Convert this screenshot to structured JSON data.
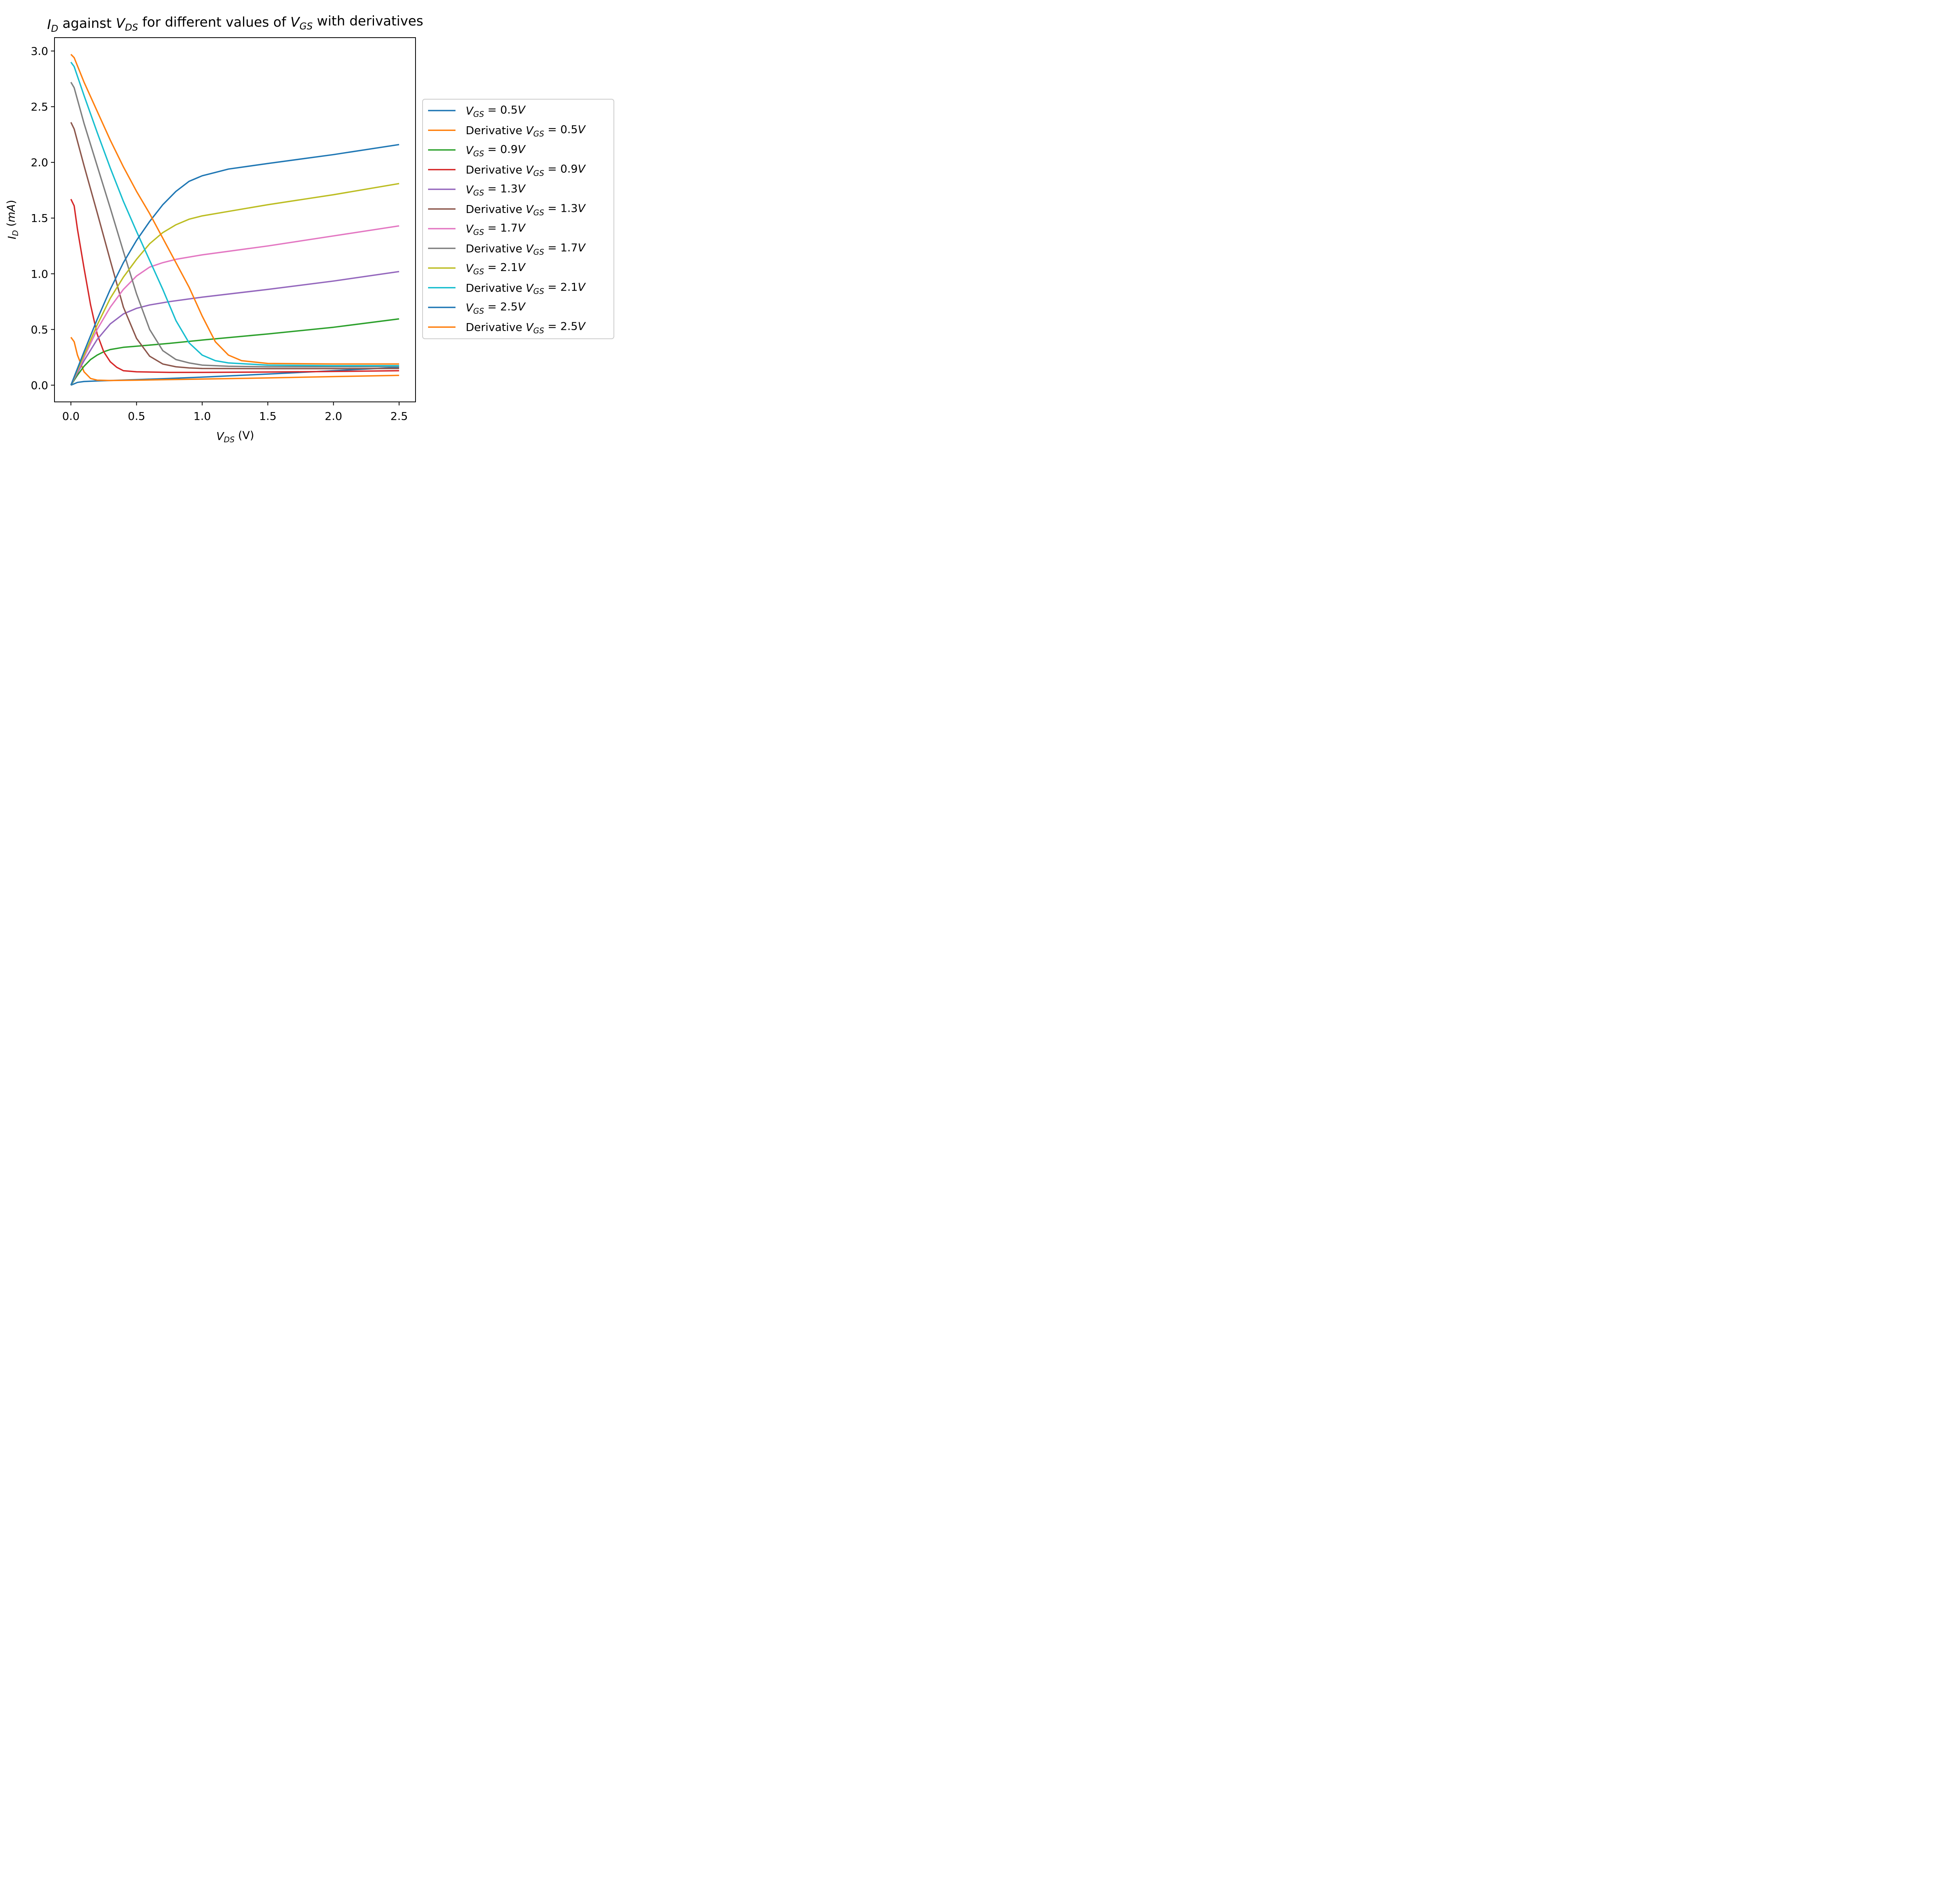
{
  "chart_data": {
    "type": "line",
    "title_parts": [
      {
        "text": "I",
        "italic": true
      },
      {
        "text": "D",
        "italic": true,
        "sub": true
      },
      {
        "text": " against "
      },
      {
        "text": "V",
        "italic": true
      },
      {
        "text": "DS",
        "italic": true,
        "sub": true
      },
      {
        "text": " for different values of "
      },
      {
        "text": "V",
        "italic": true
      },
      {
        "text": "GS",
        "italic": true,
        "sub": true
      },
      {
        "text": " with derivatives"
      }
    ],
    "xlabel_parts": [
      {
        "text": "V",
        "italic": true
      },
      {
        "text": "DS",
        "italic": true,
        "sub": true
      },
      {
        "text": " (V)"
      }
    ],
    "ylabel_parts": [
      {
        "text": "I",
        "italic": true
      },
      {
        "text": "D",
        "italic": true,
        "sub": true
      },
      {
        "text": " ("
      },
      {
        "text": "mA",
        "italic": true
      },
      {
        "text": ")"
      }
    ],
    "xlim": [
      -0.125,
      2.625
    ],
    "ylim": [
      -0.15,
      3.12
    ],
    "xticks": [
      0.0,
      0.5,
      1.0,
      1.5,
      2.0,
      2.5
    ],
    "xtick_labels": [
      "0.0",
      "0.5",
      "1.0",
      "1.5",
      "2.0",
      "2.5"
    ],
    "yticks": [
      0.0,
      0.5,
      1.0,
      1.5,
      2.0,
      2.5,
      3.0
    ],
    "ytick_labels": [
      "0.0",
      "0.5",
      "1.0",
      "1.5",
      "2.0",
      "2.5",
      "3.0"
    ],
    "grid": false,
    "legend_position": "outside-right",
    "series": [
      {
        "name_prefix": "",
        "vgs": "0.5",
        "color": "#1f77b4",
        "x": [
          0,
          0.05,
          0.1,
          0.2,
          0.3,
          0.5,
          0.75,
          1.0,
          1.5,
          2.0,
          2.5
        ],
        "y": [
          0,
          0.025,
          0.033,
          0.038,
          0.042,
          0.05,
          0.06,
          0.072,
          0.1,
          0.13,
          0.16
        ]
      },
      {
        "name_prefix": "Derivative ",
        "vgs": "0.5",
        "color": "#ff7f0e",
        "x": [
          0,
          0.025,
          0.05,
          0.1,
          0.15,
          0.2,
          0.3,
          0.5,
          1.0,
          1.5,
          2.0,
          2.5
        ],
        "y": [
          0.43,
          0.39,
          0.27,
          0.12,
          0.06,
          0.045,
          0.042,
          0.045,
          0.055,
          0.065,
          0.077,
          0.088
        ]
      },
      {
        "name_prefix": "",
        "vgs": "0.9",
        "color": "#2ca02c",
        "x": [
          0,
          0.05,
          0.1,
          0.15,
          0.2,
          0.25,
          0.3,
          0.4,
          0.5,
          0.75,
          1.0,
          1.5,
          2.0,
          2.5
        ],
        "y": [
          0,
          0.09,
          0.17,
          0.23,
          0.27,
          0.3,
          0.32,
          0.34,
          0.35,
          0.375,
          0.405,
          0.46,
          0.52,
          0.595
        ]
      },
      {
        "name_prefix": "Derivative ",
        "vgs": "0.9",
        "color": "#d62728",
        "x": [
          0,
          0.025,
          0.05,
          0.1,
          0.15,
          0.2,
          0.25,
          0.3,
          0.35,
          0.4,
          0.5,
          0.75,
          1.0,
          1.5,
          2.0,
          2.5
        ],
        "y": [
          1.67,
          1.61,
          1.4,
          1.05,
          0.72,
          0.46,
          0.3,
          0.21,
          0.16,
          0.13,
          0.12,
          0.115,
          0.115,
          0.118,
          0.123,
          0.13
        ]
      },
      {
        "name_prefix": "",
        "vgs": "1.3",
        "color": "#9467bd",
        "x": [
          0,
          0.1,
          0.2,
          0.3,
          0.4,
          0.5,
          0.6,
          0.75,
          1.0,
          1.5,
          2.0,
          2.5
        ],
        "y": [
          0,
          0.22,
          0.41,
          0.55,
          0.64,
          0.69,
          0.72,
          0.75,
          0.79,
          0.86,
          0.935,
          1.02
        ]
      },
      {
        "name_prefix": "Derivative ",
        "vgs": "1.3",
        "color": "#8c564b",
        "x": [
          0,
          0.025,
          0.1,
          0.2,
          0.3,
          0.4,
          0.5,
          0.6,
          0.7,
          0.8,
          0.9,
          1.0,
          1.5,
          2.0,
          2.5
        ],
        "y": [
          2.36,
          2.3,
          1.97,
          1.55,
          1.12,
          0.7,
          0.42,
          0.26,
          0.19,
          0.165,
          0.155,
          0.15,
          0.148,
          0.148,
          0.15
        ]
      },
      {
        "name_prefix": "",
        "vgs": "1.7",
        "color": "#e377c2",
        "x": [
          0,
          0.1,
          0.2,
          0.3,
          0.4,
          0.5,
          0.6,
          0.7,
          0.8,
          1.0,
          1.5,
          2.0,
          2.5
        ],
        "y": [
          0,
          0.25,
          0.5,
          0.7,
          0.86,
          0.98,
          1.06,
          1.1,
          1.13,
          1.17,
          1.25,
          1.34,
          1.43
        ]
      },
      {
        "name_prefix": "Derivative ",
        "vgs": "1.7",
        "color": "#7f7f7f",
        "x": [
          0,
          0.025,
          0.1,
          0.2,
          0.3,
          0.4,
          0.5,
          0.6,
          0.7,
          0.8,
          0.9,
          1.0,
          1.2,
          1.5,
          2.0,
          2.5
        ],
        "y": [
          2.72,
          2.67,
          2.35,
          1.97,
          1.59,
          1.2,
          0.82,
          0.5,
          0.31,
          0.23,
          0.2,
          0.18,
          0.17,
          0.165,
          0.165,
          0.168
        ]
      },
      {
        "name_prefix": "",
        "vgs": "2.1",
        "color": "#bcbd22",
        "x": [
          0,
          0.1,
          0.2,
          0.3,
          0.4,
          0.5,
          0.6,
          0.7,
          0.8,
          0.9,
          1.0,
          1.2,
          1.5,
          2.0,
          2.5
        ],
        "y": [
          0,
          0.27,
          0.54,
          0.78,
          0.97,
          1.13,
          1.27,
          1.37,
          1.44,
          1.49,
          1.52,
          1.56,
          1.62,
          1.71,
          1.81
        ]
      },
      {
        "name_prefix": "Derivative ",
        "vgs": "2.1",
        "color": "#17becf",
        "x": [
          0,
          0.025,
          0.1,
          0.2,
          0.3,
          0.4,
          0.5,
          0.6,
          0.7,
          0.8,
          0.9,
          1.0,
          1.1,
          1.2,
          1.5,
          2.0,
          2.5
        ],
        "y": [
          2.9,
          2.86,
          2.6,
          2.27,
          1.95,
          1.65,
          1.38,
          1.12,
          0.86,
          0.58,
          0.38,
          0.27,
          0.22,
          0.2,
          0.18,
          0.175,
          0.175
        ]
      },
      {
        "name_prefix": "",
        "vgs": "2.5",
        "color": "#1f77b4",
        "x": [
          0,
          0.1,
          0.2,
          0.3,
          0.4,
          0.5,
          0.6,
          0.7,
          0.8,
          0.9,
          1.0,
          1.1,
          1.2,
          1.5,
          2.0,
          2.5
        ],
        "y": [
          0,
          0.3,
          0.59,
          0.86,
          1.1,
          1.3,
          1.47,
          1.62,
          1.74,
          1.83,
          1.88,
          1.91,
          1.94,
          1.99,
          2.07,
          2.16
        ]
      },
      {
        "name_prefix": "Derivative ",
        "vgs": "2.5",
        "color": "#ff7f0e",
        "x": [
          0,
          0.025,
          0.1,
          0.2,
          0.3,
          0.4,
          0.5,
          0.6,
          0.7,
          0.8,
          0.9,
          1.0,
          1.1,
          1.2,
          1.3,
          1.5,
          2.0,
          2.5
        ],
        "y": [
          2.97,
          2.94,
          2.72,
          2.46,
          2.2,
          1.96,
          1.74,
          1.54,
          1.32,
          1.1,
          0.88,
          0.62,
          0.39,
          0.27,
          0.22,
          0.195,
          0.19,
          0.19
        ]
      }
    ]
  }
}
